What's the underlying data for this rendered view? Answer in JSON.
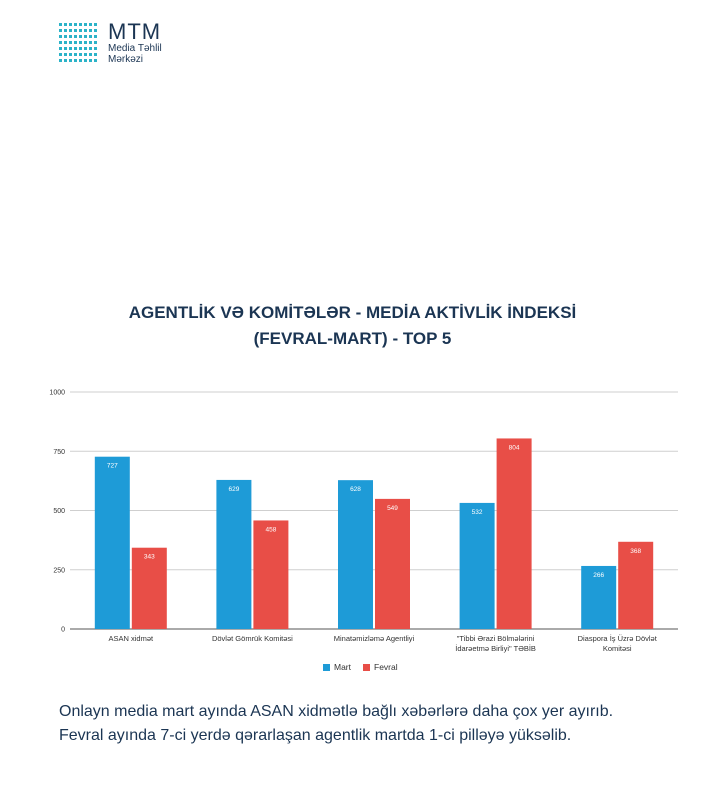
{
  "logo": {
    "name": "MTM",
    "subtitle_line1": "Media Təhlil",
    "subtitle_line2": "Mərkəzi"
  },
  "title": {
    "line1": "AGENTLİK VƏ KOMİTƏLƏR - MEDİA AKTİVLİK İNDEKSİ",
    "line2": "(FEVRAL-MART) - TOP 5"
  },
  "caption": {
    "line1": "Onlayn media mart ayında ASAN xidmətlə bağlı xəbərlərə daha çox yer ayırıb.",
    "line2": "Fevral ayında 7-ci yerdə qərarlaşan agentlik martda 1-ci pilləyə yüksəlib."
  },
  "chart_data": {
    "type": "bar",
    "categories": [
      [
        "ASAN xidmət"
      ],
      [
        "Dövlət Gömrük Komitəsi"
      ],
      [
        "Minatəmizləmə Agentliyi"
      ],
      [
        "\"Tibbi Ərazi Bölmələrini",
        "İdarəetmə Birliyi\" TƏBİB"
      ],
      [
        "Diaspora İş Üzrə Dövlət",
        "Komitəsi"
      ]
    ],
    "series": [
      {
        "name": "Mart",
        "color": "#1e9bd7",
        "values": [
          727,
          629,
          628,
          532,
          266
        ]
      },
      {
        "name": "Fevral",
        "color": "#e84e47",
        "values": [
          343,
          458,
          549,
          804,
          368
        ]
      }
    ],
    "yticks": [
      0,
      250,
      500,
      750,
      1000
    ],
    "ylim": [
      0,
      1000
    ],
    "grid": true,
    "legend": "bottom"
  }
}
